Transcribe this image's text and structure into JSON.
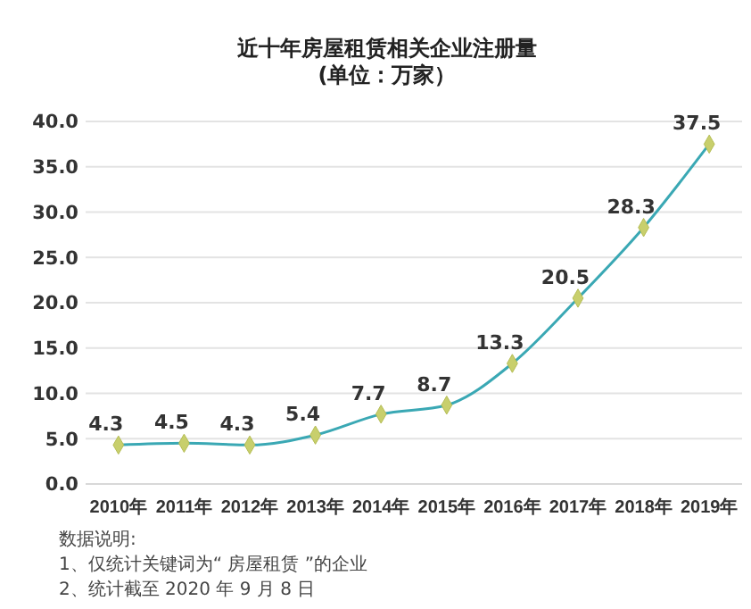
{
  "chart_data": {
    "type": "line",
    "title": "近十年房屋租赁相关企业注册量",
    "subtitle": "(单位：万家）",
    "categories": [
      "2010年",
      "2011年",
      "2012年",
      "2013年",
      "2014年",
      "2015年",
      "2016年",
      "2017年",
      "2018年",
      "2019年"
    ],
    "series": [
      {
        "color": "#3aa8b4",
        "values": [
          4.3,
          4.5,
          4.3,
          5.4,
          7.7,
          8.7,
          13.3,
          20.5,
          28.3,
          37.5
        ]
      }
    ],
    "ylim": [
      0,
      40
    ],
    "yticks": [
      {
        "value": 0,
        "label": "0.0"
      },
      {
        "value": 5,
        "label": "5.0"
      },
      {
        "value": 10,
        "label": "10.0"
      },
      {
        "value": 15,
        "label": "15.0"
      },
      {
        "value": 20,
        "label": "20.0"
      },
      {
        "value": 25,
        "label": "25.0"
      },
      {
        "value": 30,
        "label": "30.0"
      },
      {
        "value": 35,
        "label": "35.0"
      },
      {
        "value": 40,
        "label": "40.0"
      }
    ],
    "grid": "y",
    "marker": "diamond",
    "data_labels": true,
    "annotations": [
      "数据说明:",
      "1、仅统计关键词为“ 房屋租赁 ”的企业",
      "2、统计截至 2020 年 9 月 8 日"
    ]
  }
}
